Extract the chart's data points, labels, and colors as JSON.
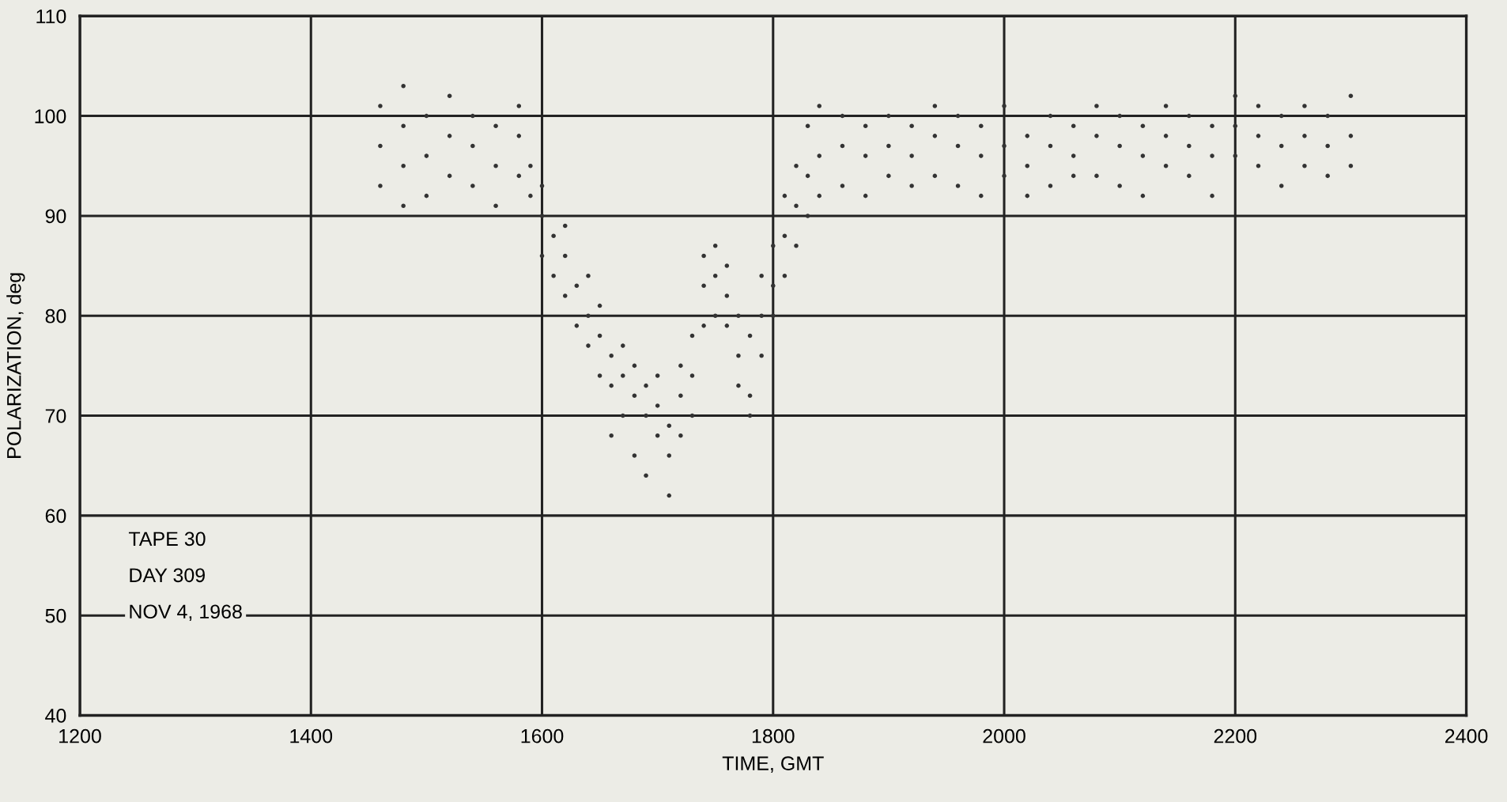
{
  "chart_data": {
    "type": "scatter",
    "xlabel": "TIME, GMT",
    "ylabel": "POLARIZATION, deg",
    "xlim": [
      1200,
      2400
    ],
    "xticks": [
      1200,
      1400,
      1600,
      1800,
      2000,
      2200,
      2400
    ],
    "ylim": [
      40,
      110
    ],
    "yticks": [
      40,
      50,
      60,
      70,
      80,
      90,
      100,
      110
    ],
    "grid": true,
    "marker": "circle",
    "annotations": [
      "TAPE 30",
      "DAY 309",
      "NOV 4, 1968"
    ],
    "series": [
      {
        "color": "#333333",
        "x": [
          1460,
          1460,
          1460,
          1480,
          1480,
          1480,
          1480,
          1500,
          1500,
          1500,
          1520,
          1520,
          1520,
          1540,
          1540,
          1540,
          1560,
          1560,
          1560,
          1580,
          1580,
          1580,
          1590,
          1590,
          1600,
          1600,
          1600,
          1610,
          1610,
          1620,
          1620,
          1620,
          1630,
          1630,
          1640,
          1640,
          1640,
          1650,
          1650,
          1650,
          1660,
          1660,
          1660,
          1670,
          1670,
          1670,
          1680,
          1680,
          1680,
          1690,
          1690,
          1690,
          1700,
          1700,
          1700,
          1710,
          1710,
          1710,
          1720,
          1720,
          1720,
          1730,
          1730,
          1730,
          1740,
          1740,
          1740,
          1750,
          1750,
          1750,
          1760,
          1760,
          1760,
          1770,
          1770,
          1770,
          1780,
          1780,
          1780,
          1790,
          1790,
          1790,
          1800,
          1800,
          1800,
          1810,
          1810,
          1810,
          1820,
          1820,
          1820,
          1830,
          1830,
          1830,
          1840,
          1840,
          1840,
          1860,
          1860,
          1860,
          1880,
          1880,
          1880,
          1900,
          1900,
          1900,
          1920,
          1920,
          1920,
          1940,
          1940,
          1940,
          1960,
          1960,
          1960,
          1980,
          1980,
          1980,
          2000,
          2000,
          2000,
          2020,
          2020,
          2020,
          2040,
          2040,
          2040,
          2060,
          2060,
          2060,
          2080,
          2080,
          2080,
          2100,
          2100,
          2100,
          2120,
          2120,
          2120,
          2140,
          2140,
          2140,
          2160,
          2160,
          2160,
          2180,
          2180,
          2180,
          2200,
          2200,
          2200,
          2220,
          2220,
          2220,
          2240,
          2240,
          2240,
          2260,
          2260,
          2260,
          2280,
          2280,
          2280,
          2300,
          2300,
          2300
        ],
        "values": [
          97,
          93,
          101,
          99,
          95,
          91,
          103,
          96,
          100,
          92,
          98,
          94,
          102,
          97,
          93,
          100,
          99,
          95,
          91,
          98,
          94,
          101,
          95,
          92,
          90,
          86,
          93,
          88,
          84,
          86,
          82,
          89,
          83,
          79,
          80,
          77,
          84,
          78,
          74,
          81,
          76,
          73,
          68,
          77,
          74,
          70,
          75,
          72,
          66,
          73,
          70,
          64,
          71,
          68,
          74,
          69,
          66,
          62,
          72,
          68,
          75,
          78,
          74,
          70,
          83,
          79,
          86,
          84,
          80,
          87,
          82,
          79,
          85,
          80,
          76,
          73,
          78,
          72,
          70,
          80,
          76,
          84,
          83,
          80,
          87,
          88,
          84,
          92,
          91,
          87,
          95,
          94,
          90,
          99,
          96,
          92,
          101,
          97,
          93,
          100,
          96,
          99,
          92,
          97,
          94,
          100,
          96,
          99,
          93,
          98,
          94,
          101,
          97,
          93,
          100,
          96,
          99,
          92,
          97,
          94,
          101,
          98,
          95,
          92,
          97,
          100,
          93,
          96,
          99,
          94,
          98,
          94,
          101,
          97,
          100,
          93,
          96,
          99,
          92,
          98,
          95,
          101,
          97,
          100,
          94,
          96,
          99,
          92,
          99,
          96,
          102,
          98,
          95,
          101,
          97,
          100,
          93,
          98,
          95,
          101,
          97,
          100,
          94,
          98,
          95,
          102
        ]
      }
    ]
  }
}
